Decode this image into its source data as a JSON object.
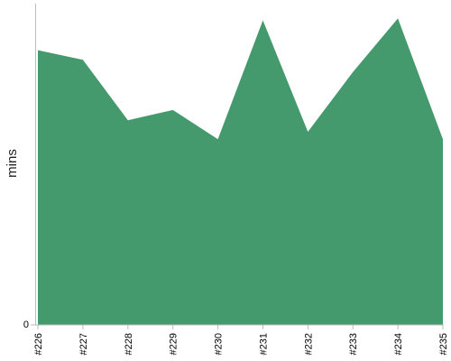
{
  "chart_data": {
    "type": "area",
    "categories": [
      "#226",
      "#227",
      "#228",
      "#229",
      "#230",
      "#231",
      "#232",
      "#233",
      "#234",
      "#235"
    ],
    "series": [
      {
        "values": [
          85.5,
          82.5,
          63.7,
          66.9,
          57.8,
          94.8,
          60.1,
          78.7,
          95.4,
          57.8
        ]
      }
    ],
    "xlabel": "",
    "ylabel": "mins",
    "ylim": [
      0,
      100
    ],
    "yticks": [
      "0"
    ],
    "fill_color": "#449a6c",
    "grid": false
  }
}
